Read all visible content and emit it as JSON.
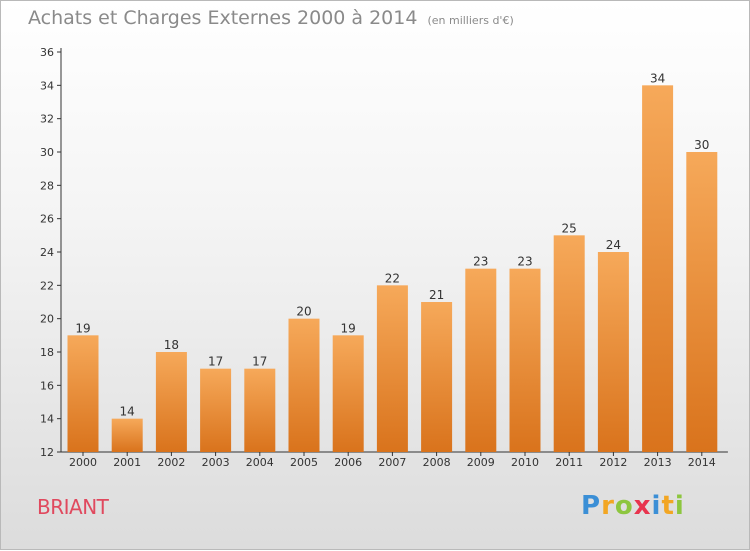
{
  "header": {
    "title": "Achats et Charges Externes 2000 à 2014",
    "subtitle": "(en milliers d'€)"
  },
  "footer": {
    "town": "BRIANT",
    "logo": {
      "letters": [
        "P",
        "r",
        "o",
        "x",
        "i",
        "t",
        "i"
      ],
      "colors": [
        "#3b8fd6",
        "#f2a623",
        "#8dc63f",
        "#e8344e",
        "#3b8fd6",
        "#f2a623",
        "#8dc63f"
      ]
    }
  },
  "chart_data": {
    "type": "bar",
    "title": "Achats et Charges Externes 2000 à 2014",
    "subtitle": "(en milliers d'€)",
    "categories": [
      "2000",
      "2001",
      "2002",
      "2003",
      "2004",
      "2005",
      "2006",
      "2007",
      "2008",
      "2009",
      "2010",
      "2011",
      "2012",
      "2013",
      "2014"
    ],
    "values": [
      19,
      14,
      18,
      17,
      17,
      20,
      19,
      22,
      21,
      23,
      23,
      25,
      24,
      34,
      30
    ],
    "ylim": [
      12,
      36
    ],
    "yticks": [
      12,
      14,
      16,
      18,
      20,
      22,
      24,
      26,
      28,
      30,
      32,
      34,
      36
    ],
    "grid": false,
    "legend": "none",
    "colors": {
      "bar_top": "#f6a95a",
      "bar_bottom": "#d9731c",
      "axis": "#333333"
    }
  }
}
